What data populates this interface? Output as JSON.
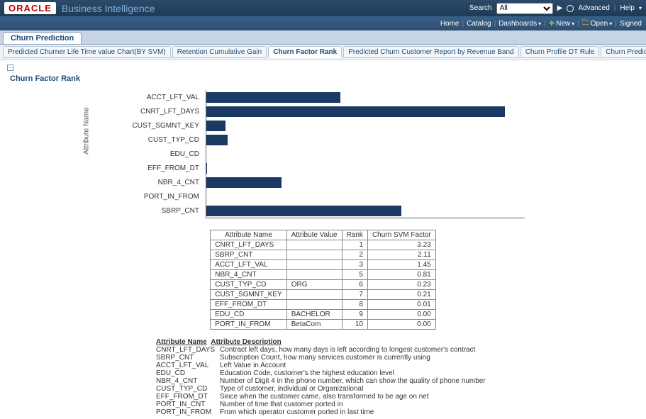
{
  "brand": {
    "logo": "ORACLE",
    "title": "Business Intelligence"
  },
  "top": {
    "search_label": "Search",
    "search_select": "All",
    "advanced": "Advanced",
    "help": "Help"
  },
  "menu": {
    "home": "Home",
    "catalog": "Catalog",
    "dashboards": "Dashboards",
    "new": "New",
    "open": "Open",
    "signed": "Signed"
  },
  "main_tab": "Churn Prediction",
  "sub_tabs": [
    {
      "label": "Predicted Churner Life Time value Chart(BY SVM)",
      "active": false
    },
    {
      "label": "Retention Cumulative Gain",
      "active": false
    },
    {
      "label": "Churn Factor Rank",
      "active": true
    },
    {
      "label": "Predicted Churn Customer Report by Revenue Band",
      "active": false
    },
    {
      "label": "Churn Profile DT Rule",
      "active": false
    },
    {
      "label": "Churn Prediction by(SVM result)",
      "active": false
    }
  ],
  "section_title": "Churn Factor Rank",
  "chart": {
    "y_axis_label": "Attribute Name",
    "max": 3.3,
    "color": "#1b3a63",
    "bars": [
      {
        "label": "ACCT_LFT_VAL",
        "value": 1.45
      },
      {
        "label": "CNRT_LFT_DAYS",
        "value": 3.23
      },
      {
        "label": "CUST_SGMNT_KEY",
        "value": 0.21
      },
      {
        "label": "CUST_TYP_CD",
        "value": 0.23
      },
      {
        "label": "EDU_CD",
        "value": 0.0
      },
      {
        "label": "EFF_FROM_DT",
        "value": 0.01
      },
      {
        "label": "NBR_4_CNT",
        "value": 0.81
      },
      {
        "label": "PORT_IN_FROM",
        "value": 0.0
      },
      {
        "label": "SBRP_CNT",
        "value": 2.11
      }
    ]
  },
  "table": {
    "headers": [
      "Attribute Name",
      "Attribute Value",
      "Rank",
      "Churn SVM Factor"
    ],
    "rows": [
      [
        "CNRT_LFT_DAYS",
        "",
        "1",
        "3.23"
      ],
      [
        "SBRP_CNT",
        "",
        "2",
        "2.11"
      ],
      [
        "ACCT_LFT_VAL",
        "",
        "3",
        "1.45"
      ],
      [
        "NBR_4_CNT",
        "",
        "5",
        "0.81"
      ],
      [
        "CUST_TYP_CD",
        "ORG",
        "6",
        "0.23"
      ],
      [
        "CUST_SGMNT_KEY",
        "",
        "7",
        "0.21"
      ],
      [
        "EFF_FROM_DT",
        "",
        "8",
        "0.01"
      ],
      [
        "EDU_CD",
        "BACHELOR",
        "9",
        "0.00"
      ],
      [
        "PORT_IN_FROM",
        "BetaCom",
        "10",
        "0.00"
      ]
    ]
  },
  "desc": {
    "head_name": "Attribute Name",
    "head_desc": "Attribute Description",
    "rows": [
      [
        "CNRT_LFT_DAYS",
        "Contract left days, how many days is left according to longest customer's contract"
      ],
      [
        "SBRP_CNT",
        "Subscription Count, how many services customer is currently using"
      ],
      [
        "ACCT_LFT_VAL",
        "Left Value in Account"
      ],
      [
        "EDU_CD",
        "Education Code, customer's the highest education level"
      ],
      [
        "NBR_4_CNT",
        "Number of Digit 4 in the phone number, which can show the quality of phone number"
      ],
      [
        "CUST_TYP_CD",
        "Type of customer, individual or Organizational"
      ],
      [
        "EFF_FROM_DT",
        "Since when the customer came, also transformed to be age on net"
      ],
      [
        "PORT_IN_CNT",
        "Number of time that customer ported in"
      ],
      [
        "PORT_IN_FROM",
        "From which operator customer ported in last time"
      ]
    ]
  }
}
